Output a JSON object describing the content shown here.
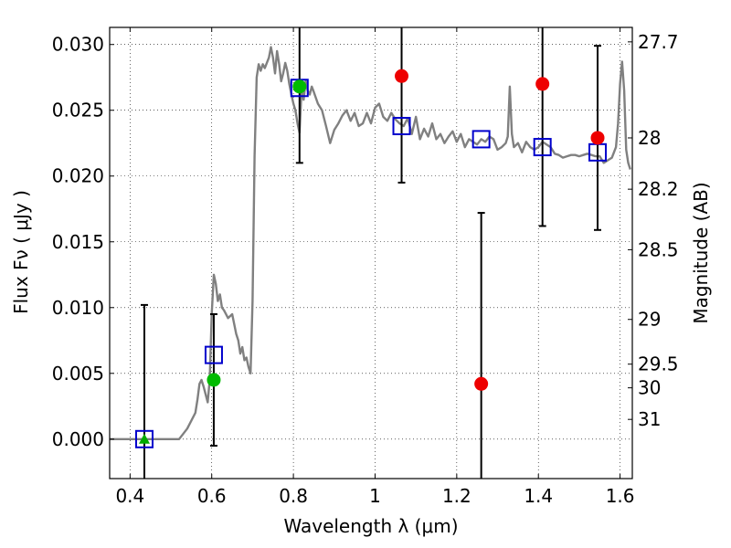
{
  "chart_data": {
    "type": "scatter",
    "xlabel": "Wavelength  λ (μm)",
    "ylabel": "Flux  Fν  ( μJy )",
    "y2label": "Magnitude (AB)",
    "xlim": [
      0.35,
      1.63
    ],
    "ylim": [
      -0.003,
      0.0313
    ],
    "grid": true,
    "x_ticks": [
      0.4,
      0.6,
      0.8,
      1.0,
      1.2,
      1.4,
      1.6
    ],
    "x_tick_labels": [
      "0.4",
      "0.6",
      "0.8",
      "1",
      "1.2",
      "1.4",
      "1.6"
    ],
    "y_ticks": [
      0.0,
      0.005,
      0.01,
      0.015,
      0.02,
      0.025,
      0.03
    ],
    "y_tick_labels": [
      "0.000",
      "0.005",
      "0.010",
      "0.015",
      "0.020",
      "0.025",
      "0.030"
    ],
    "y2_ticks": [
      {
        "label": "27.7",
        "flux": 0.0302
      },
      {
        "label": "28",
        "flux": 0.0229
      },
      {
        "label": "28.2",
        "flux": 0.019
      },
      {
        "label": "28.5",
        "flux": 0.0144
      },
      {
        "label": "29",
        "flux": 0.0091
      },
      {
        "label": "29.5",
        "flux": 0.0057
      },
      {
        "label": "30",
        "flux": 0.0039
      },
      {
        "label": "31",
        "flux": 0.0015
      }
    ],
    "series": [
      {
        "kind": "line",
        "color": "#808080",
        "x": [
          0.35,
          0.5,
          0.52,
          0.54,
          0.56,
          0.565,
          0.57,
          0.575,
          0.58,
          0.59,
          0.595,
          0.6,
          0.605,
          0.61,
          0.615,
          0.62,
          0.625,
          0.63,
          0.64,
          0.65,
          0.66,
          0.665,
          0.67,
          0.675,
          0.68,
          0.685,
          0.69,
          0.695,
          0.7,
          0.705,
          0.71,
          0.715,
          0.72,
          0.725,
          0.73,
          0.735,
          0.74,
          0.745,
          0.75,
          0.755,
          0.76,
          0.765,
          0.77,
          0.775,
          0.78,
          0.785,
          0.79,
          0.795,
          0.8,
          0.805,
          0.81,
          0.815,
          0.82,
          0.825,
          0.83,
          0.835,
          0.84,
          0.845,
          0.85,
          0.86,
          0.87,
          0.88,
          0.89,
          0.9,
          0.91,
          0.92,
          0.93,
          0.94,
          0.95,
          0.96,
          0.97,
          0.98,
          0.99,
          1.0,
          1.01,
          1.02,
          1.03,
          1.04,
          1.05,
          1.06,
          1.07,
          1.08,
          1.09,
          1.1,
          1.11,
          1.12,
          1.13,
          1.14,
          1.15,
          1.16,
          1.17,
          1.18,
          1.19,
          1.2,
          1.21,
          1.22,
          1.23,
          1.24,
          1.25,
          1.26,
          1.27,
          1.28,
          1.29,
          1.3,
          1.31,
          1.32,
          1.325,
          1.33,
          1.335,
          1.34,
          1.35,
          1.36,
          1.37,
          1.38,
          1.39,
          1.4,
          1.41,
          1.42,
          1.43,
          1.44,
          1.45,
          1.46,
          1.47,
          1.48,
          1.49,
          1.5,
          1.51,
          1.52,
          1.53,
          1.54,
          1.55,
          1.56,
          1.57,
          1.58,
          1.59,
          1.595,
          1.6,
          1.605,
          1.61,
          1.615,
          1.62,
          1.625
        ],
        "y": [
          0.0,
          0.0,
          0.0,
          0.0008,
          0.002,
          0.003,
          0.0042,
          0.0045,
          0.004,
          0.0028,
          0.0045,
          0.0095,
          0.0125,
          0.0118,
          0.0105,
          0.011,
          0.01,
          0.0098,
          0.0092,
          0.0095,
          0.008,
          0.0075,
          0.0065,
          0.007,
          0.006,
          0.0062,
          0.0055,
          0.005,
          0.0105,
          0.0215,
          0.0275,
          0.0285,
          0.028,
          0.0285,
          0.0282,
          0.0286,
          0.029,
          0.0298,
          0.029,
          0.0278,
          0.0295,
          0.0285,
          0.0272,
          0.0278,
          0.0286,
          0.028,
          0.027,
          0.0262,
          0.0255,
          0.025,
          0.024,
          0.0233,
          0.0265,
          0.0258,
          0.0272,
          0.0265,
          0.0262,
          0.0268,
          0.0264,
          0.0255,
          0.025,
          0.0238,
          0.0225,
          0.0235,
          0.024,
          0.0246,
          0.025,
          0.0242,
          0.0248,
          0.0238,
          0.024,
          0.0248,
          0.024,
          0.0252,
          0.0255,
          0.0245,
          0.0242,
          0.0248,
          0.0243,
          0.024,
          0.0238,
          0.0244,
          0.0232,
          0.0245,
          0.0228,
          0.0236,
          0.023,
          0.024,
          0.0228,
          0.0232,
          0.0225,
          0.023,
          0.0234,
          0.0226,
          0.0232,
          0.0222,
          0.0228,
          0.0226,
          0.0224,
          0.0228,
          0.0226,
          0.023,
          0.0228,
          0.022,
          0.0222,
          0.0225,
          0.023,
          0.0268,
          0.0232,
          0.0222,
          0.0225,
          0.0218,
          0.0226,
          0.0222,
          0.022,
          0.0222,
          0.0226,
          0.0224,
          0.0222,
          0.0217,
          0.0216,
          0.0214,
          0.0215,
          0.0216,
          0.0216,
          0.0215,
          0.0216,
          0.0217,
          0.0216,
          0.0215,
          0.0215,
          0.021,
          0.0212,
          0.0214,
          0.0222,
          0.024,
          0.027,
          0.0287,
          0.0265,
          0.022,
          0.021,
          0.0205
        ]
      },
      {
        "kind": "open-square",
        "color": "#0000cc",
        "x": [
          0.435,
          0.605,
          0.815,
          1.065,
          1.26,
          1.41,
          1.545
        ],
        "y": [
          0.0,
          0.0064,
          0.0267,
          0.0238,
          0.0228,
          0.0222,
          0.0218
        ]
      },
      {
        "kind": "filled-circle",
        "color": "#00bb00",
        "x": [
          0.605,
          0.815
        ],
        "y": [
          0.0045,
          0.0268
        ]
      },
      {
        "kind": "filled-triangle",
        "color": "#00aa00",
        "x": [
          0.435
        ],
        "y": [
          0.0
        ]
      },
      {
        "kind": "filled-circle",
        "color": "#ee0000",
        "x": [
          1.065,
          1.26,
          1.41,
          1.545
        ],
        "y": [
          0.0276,
          0.0042,
          0.027,
          0.0229
        ]
      },
      {
        "kind": "errorbar",
        "color": "#000000",
        "x": [
          0.435,
          0.605,
          0.815,
          1.065,
          1.26,
          1.41,
          1.545
        ],
        "ylow": [
          -0.003,
          -0.0005,
          0.021,
          0.0195,
          -0.003,
          0.0162,
          0.0159
        ],
        "yhigh": [
          0.0102,
          0.0095,
          0.0313,
          0.0313,
          0.0172,
          0.0313,
          0.0299
        ],
        "low_cap": [
          false,
          true,
          true,
          true,
          false,
          true,
          true
        ],
        "high_cap": [
          true,
          true,
          false,
          false,
          true,
          false,
          true
        ]
      }
    ]
  }
}
